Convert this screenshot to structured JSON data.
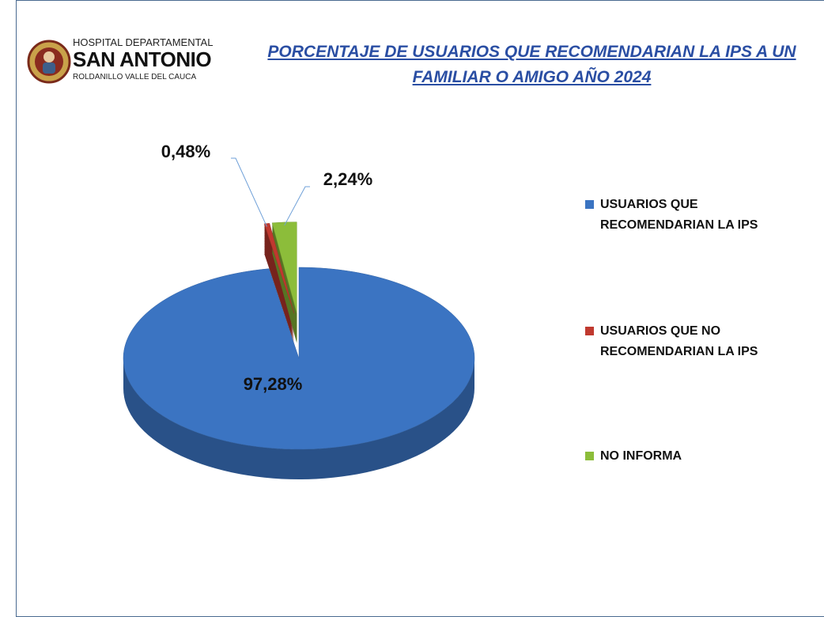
{
  "logo": {
    "line1": "HOSPITAL DEPARTAMENTAL",
    "line2": "SAN ANTONIO",
    "line3": "ROLDANILLO VALLE DEL CAUCA"
  },
  "chart_data": {
    "type": "pie",
    "title": "PORCENTAJE DE USUARIOS QUE RECOMENDARIAN LA IPS A UN FAMILIAR O AMIGO AÑO 2024",
    "categories": [
      "USUARIOS QUE RECOMENDARIAN LA IPS",
      "USUARIOS QUE NO RECOMENDARIAN LA IPS",
      "NO INFORMA"
    ],
    "values": [
      97.28,
      0.48,
      2.24
    ],
    "value_labels": [
      "97,28%",
      "0,48%",
      "2,24%"
    ],
    "colors": [
      "#3b74c2",
      "#c0392f",
      "#8cbd3a"
    ],
    "explode": [
      false,
      true,
      true
    ],
    "legend": "right"
  }
}
